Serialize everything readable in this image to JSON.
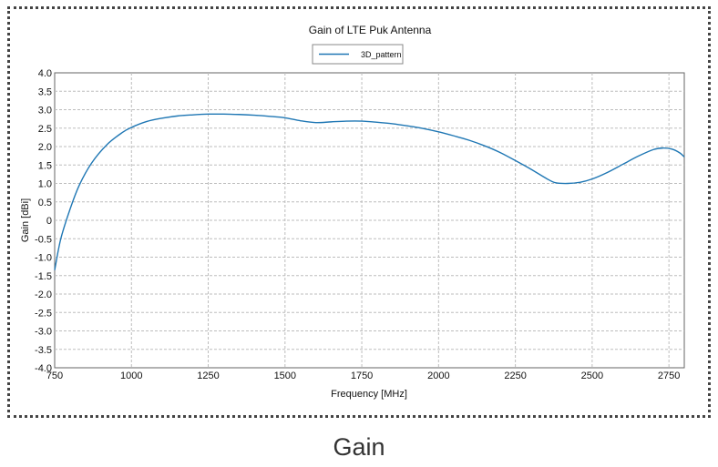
{
  "caption": "Gain",
  "chart_data": {
    "type": "line",
    "title": "Gain of LTE Puk Antenna",
    "xlabel": "Frequency [MHz]",
    "ylabel": "Gain [dBi]",
    "xlim": [
      750,
      2800
    ],
    "ylim": [
      -4.0,
      4.0
    ],
    "x_ticks": [
      750,
      1000,
      1250,
      1500,
      1750,
      2000,
      2250,
      2500,
      2750
    ],
    "y_ticks": [
      -4.0,
      -3.5,
      -3.0,
      -2.5,
      -2.0,
      -1.5,
      -1.0,
      -0.5,
      0,
      0.5,
      1.0,
      1.5,
      2.0,
      2.5,
      3.0,
      3.5,
      4.0
    ],
    "x_tick_labels": [
      "750",
      "1000",
      "1250",
      "1500",
      "1750",
      "2000",
      "2250",
      "2500",
      "2750"
    ],
    "y_tick_labels": [
      "-4.0",
      "-3.5",
      "-3.0",
      "-2.5",
      "-2.0",
      "-1.5",
      "-1.0",
      "-0.5",
      "0",
      "0.5",
      "1.0",
      "1.5",
      "2.0",
      "2.5",
      "3.0",
      "3.5",
      "4.0"
    ],
    "grid": true,
    "legend_position": "top-center",
    "series": [
      {
        "name": "3D_pattern",
        "color": "#1f77b4",
        "x": [
          750,
          770,
          800,
          830,
          870,
          920,
          970,
          1000,
          1050,
          1100,
          1150,
          1200,
          1250,
          1300,
          1350,
          1400,
          1450,
          1500,
          1550,
          1600,
          1650,
          1700,
          1750,
          1800,
          1850,
          1900,
          1950,
          2000,
          2050,
          2100,
          2150,
          2200,
          2250,
          2300,
          2350,
          2380,
          2420,
          2460,
          2500,
          2550,
          2600,
          2650,
          2700,
          2730,
          2760,
          2785,
          2800
        ],
        "y": [
          -1.35,
          -0.5,
          0.3,
          0.95,
          1.55,
          2.05,
          2.38,
          2.52,
          2.68,
          2.77,
          2.83,
          2.86,
          2.88,
          2.88,
          2.87,
          2.85,
          2.82,
          2.78,
          2.7,
          2.65,
          2.67,
          2.69,
          2.69,
          2.66,
          2.62,
          2.56,
          2.49,
          2.4,
          2.29,
          2.17,
          2.02,
          1.84,
          1.62,
          1.39,
          1.14,
          1.02,
          1.0,
          1.03,
          1.12,
          1.3,
          1.52,
          1.74,
          1.92,
          1.96,
          1.93,
          1.83,
          1.72
        ]
      }
    ]
  }
}
